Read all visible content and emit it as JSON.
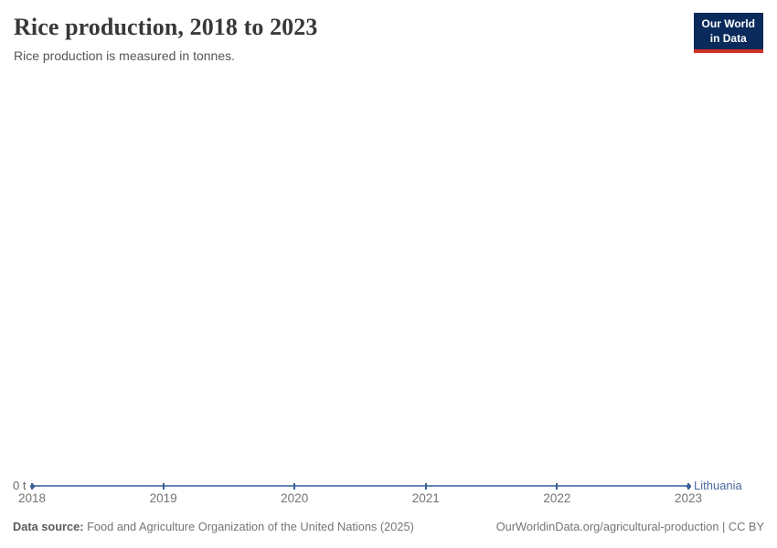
{
  "header": {
    "title": "Rice production, 2018 to 2023",
    "subtitle": "Rice production is measured in tonnes.",
    "logo": {
      "line1": "Our World",
      "line2": "in Data"
    }
  },
  "chart_data": {
    "type": "line",
    "title": "Rice production, 2018 to 2023",
    "x": [
      2018,
      2019,
      2020,
      2021,
      2022,
      2023
    ],
    "series": [
      {
        "name": "Lithuania",
        "values": [
          0,
          0,
          0,
          0,
          0,
          0
        ]
      }
    ],
    "xlabel": "",
    "ylabel": "",
    "y_axis_unit": "tonnes",
    "y_zero_tick": "0 t",
    "ylim": [
      0,
      0
    ],
    "grid": false,
    "legend_position": "end-of-line"
  },
  "footer": {
    "source_label": "Data source:",
    "source_text": "Food and Agriculture Organization of the United Nations (2025)",
    "link_text": "OurWorldinData.org/agricultural-production | CC BY"
  },
  "colors": {
    "line": "#6485b6",
    "marker": "#3a5e94",
    "entity_label": "#4c6a9c",
    "logo_bg": "#0a2a5c",
    "logo_red": "#cf3128",
    "title_text": "#383838",
    "axis_text": "#737373"
  }
}
